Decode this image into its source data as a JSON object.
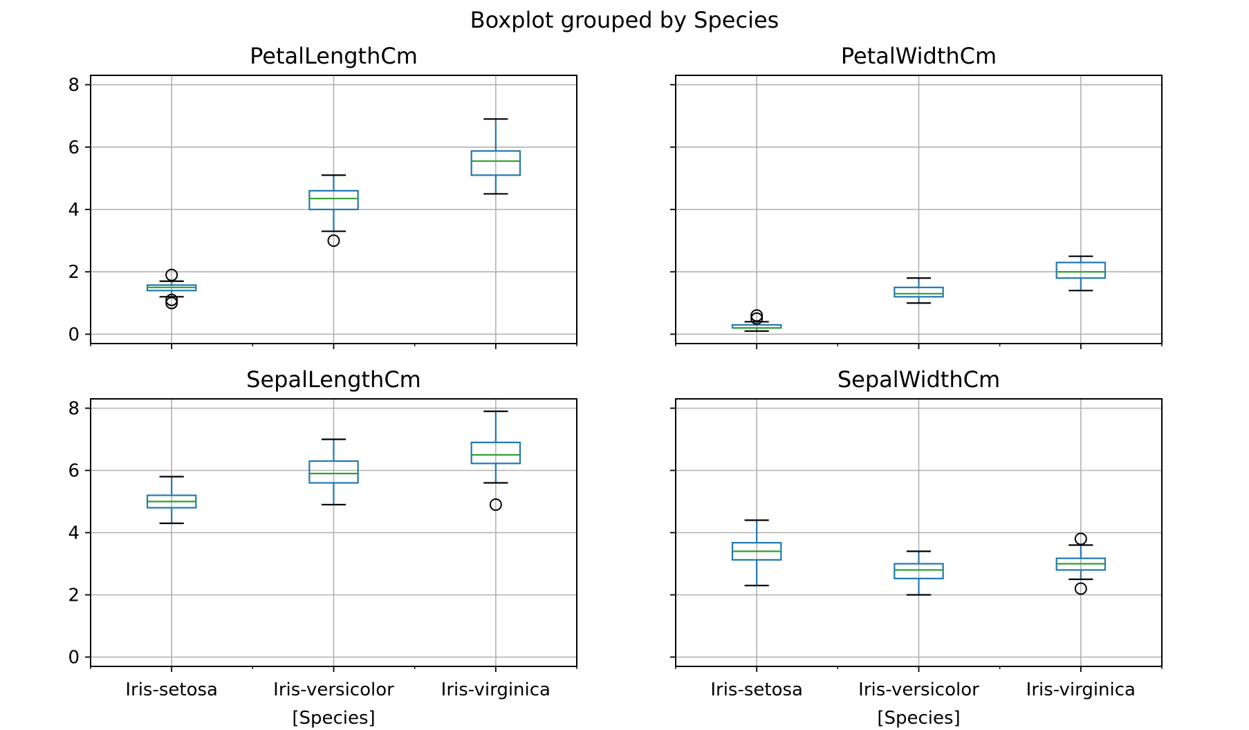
{
  "figure": {
    "suptitle": "Boxplot grouped by Species"
  },
  "colors": {
    "box": "#1f77b4",
    "median": "#2ca02c",
    "grid": "#b0b0b0",
    "axes": "#000000",
    "flier": "#000000"
  },
  "chart_data": [
    {
      "type": "boxplot",
      "title": "PetalLengthCm",
      "categories": [
        "Iris-setosa",
        "Iris-versicolor",
        "Iris-virginica"
      ],
      "xlabel": "",
      "ylim": [
        -0.3,
        8.3
      ],
      "yticks": [
        0,
        2,
        4,
        6,
        8
      ],
      "grid": true,
      "boxes": [
        {
          "whisker_low": 1.2,
          "q1": 1.4,
          "median": 1.5,
          "q3": 1.575,
          "whisker_high": 1.7,
          "fliers": [
            1.0,
            1.1,
            1.9
          ]
        },
        {
          "whisker_low": 3.3,
          "q1": 4.0,
          "median": 4.35,
          "q3": 4.6,
          "whisker_high": 5.1,
          "fliers": [
            3.0
          ]
        },
        {
          "whisker_low": 4.5,
          "q1": 5.1,
          "median": 5.55,
          "q3": 5.875,
          "whisker_high": 6.9,
          "fliers": []
        }
      ]
    },
    {
      "type": "boxplot",
      "title": "PetalWidthCm",
      "categories": [
        "Iris-setosa",
        "Iris-versicolor",
        "Iris-virginica"
      ],
      "xlabel": "",
      "ylim": [
        -0.3,
        8.3
      ],
      "yticks": [
        0,
        2,
        4,
        6,
        8
      ],
      "grid": true,
      "boxes": [
        {
          "whisker_low": 0.1,
          "q1": 0.2,
          "median": 0.2,
          "q3": 0.3,
          "whisker_high": 0.4,
          "fliers": [
            0.5,
            0.6
          ]
        },
        {
          "whisker_low": 1.0,
          "q1": 1.2,
          "median": 1.3,
          "q3": 1.5,
          "whisker_high": 1.8,
          "fliers": []
        },
        {
          "whisker_low": 1.4,
          "q1": 1.8,
          "median": 2.0,
          "q3": 2.3,
          "whisker_high": 2.5,
          "fliers": []
        }
      ]
    },
    {
      "type": "boxplot",
      "title": "SepalLengthCm",
      "categories": [
        "Iris-setosa",
        "Iris-versicolor",
        "Iris-virginica"
      ],
      "xlabel": "[Species]",
      "ylim": [
        -0.3,
        8.3
      ],
      "yticks": [
        0,
        2,
        4,
        6,
        8
      ],
      "grid": true,
      "boxes": [
        {
          "whisker_low": 4.3,
          "q1": 4.8,
          "median": 5.0,
          "q3": 5.2,
          "whisker_high": 5.8,
          "fliers": []
        },
        {
          "whisker_low": 4.9,
          "q1": 5.6,
          "median": 5.9,
          "q3": 6.3,
          "whisker_high": 7.0,
          "fliers": []
        },
        {
          "whisker_low": 5.6,
          "q1": 6.225,
          "median": 6.5,
          "q3": 6.9,
          "whisker_high": 7.9,
          "fliers": [
            4.9
          ]
        }
      ]
    },
    {
      "type": "boxplot",
      "title": "SepalWidthCm",
      "categories": [
        "Iris-setosa",
        "Iris-versicolor",
        "Iris-virginica"
      ],
      "xlabel": "[Species]",
      "ylim": [
        -0.3,
        8.3
      ],
      "yticks": [
        0,
        2,
        4,
        6,
        8
      ],
      "grid": true,
      "boxes": [
        {
          "whisker_low": 2.3,
          "q1": 3.125,
          "median": 3.4,
          "q3": 3.675,
          "whisker_high": 4.4,
          "fliers": []
        },
        {
          "whisker_low": 2.0,
          "q1": 2.525,
          "median": 2.8,
          "q3": 3.0,
          "whisker_high": 3.4,
          "fliers": []
        },
        {
          "whisker_low": 2.5,
          "q1": 2.8,
          "median": 3.0,
          "q3": 3.175,
          "whisker_high": 3.6,
          "fliers": [
            2.2,
            3.8
          ]
        }
      ]
    }
  ]
}
